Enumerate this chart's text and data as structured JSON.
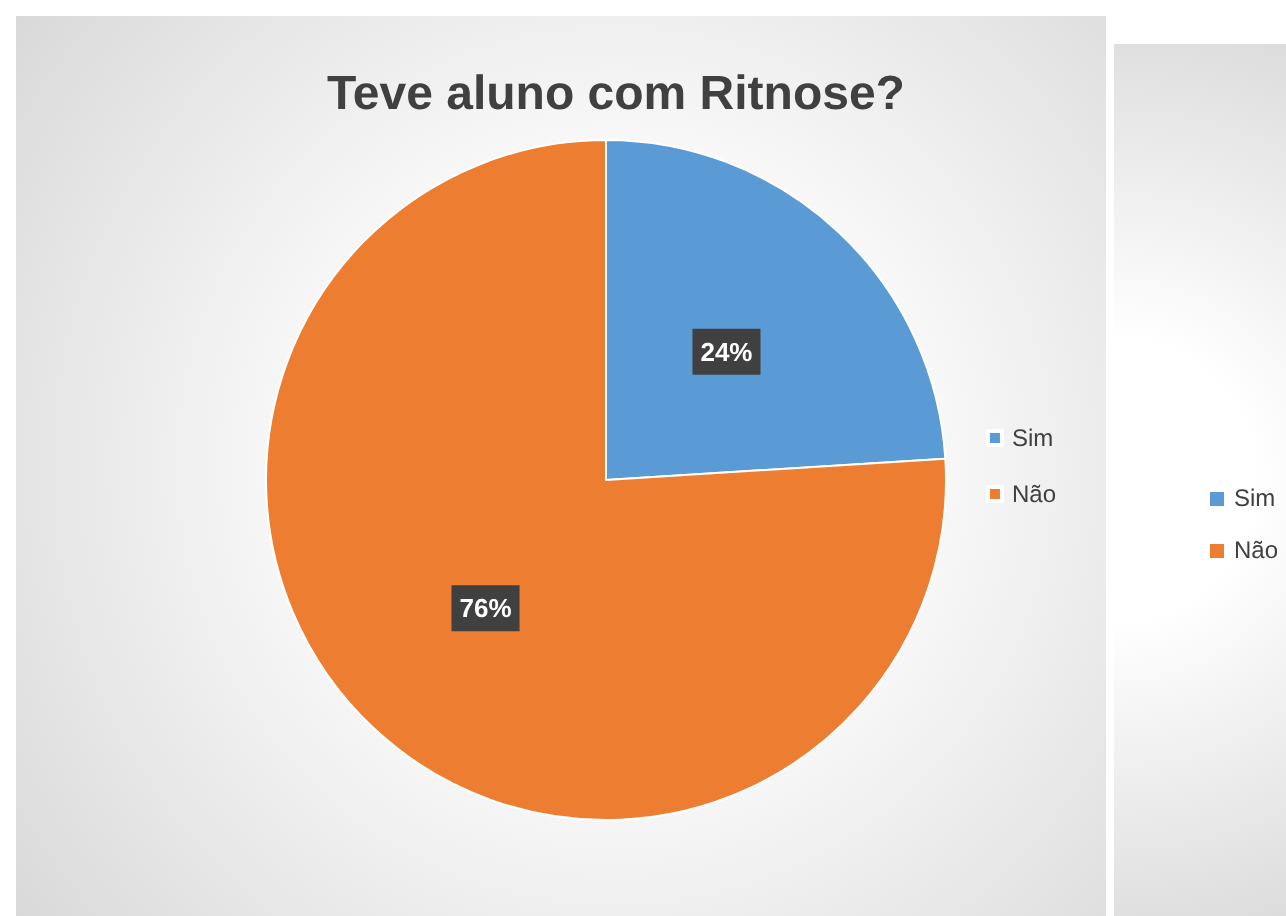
{
  "chart_data": [
    {
      "type": "pie",
      "title": "Teve aluno com Ritnose?",
      "categories": [
        "Sim",
        "Não"
      ],
      "values": [
        24,
        76
      ],
      "value_labels": [
        "24%",
        "76%"
      ],
      "colors": [
        "#5b9bd5",
        "#ed7d31"
      ],
      "legend": "right"
    },
    {
      "type": "other",
      "annotations": [
        "Sim",
        "Não"
      ],
      "colors": [
        "#5b9bd5",
        "#ed7d31"
      ]
    }
  ]
}
